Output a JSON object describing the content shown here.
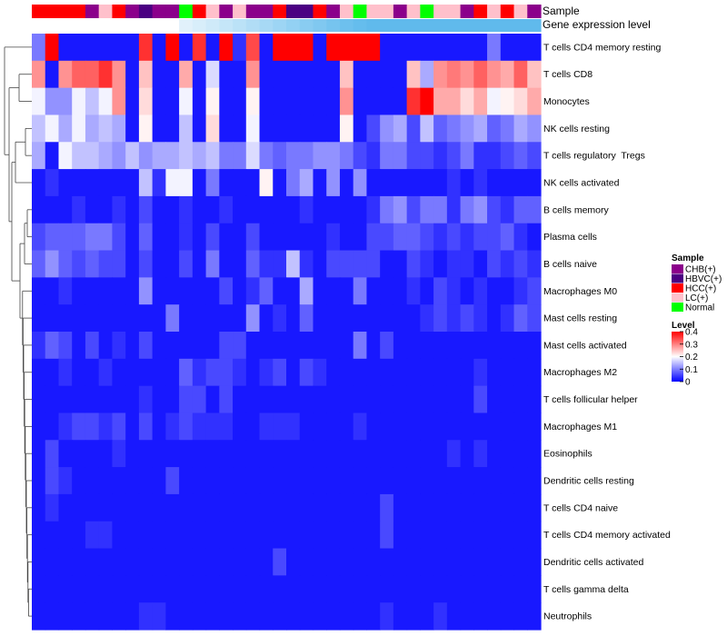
{
  "chart_data": {
    "type": "heatmap",
    "title": "",
    "annotation_labels": {
      "sample": "Sample",
      "gene_expression": "Gene expression level"
    },
    "sample_groups": [
      "CHB(+)",
      "HBVC(+)",
      "HCC(+)",
      "LC(+)",
      "Normal"
    ],
    "sample_colors": {
      "CHB(+)": "#8B008B",
      "HBVC(+)": "#4B0082",
      "HCC(+)": "#FF0000",
      "LC(+)": "#FFC0CB",
      "Normal": "#00FF00"
    },
    "sample_sequence": [
      "HCC(+)",
      "HCC(+)",
      "HCC(+)",
      "HCC(+)",
      "CHB(+)",
      "LC(+)",
      "HCC(+)",
      "CHB(+)",
      "HBVC(+)",
      "CHB(+)",
      "CHB(+)",
      "Normal",
      "HCC(+)",
      "LC(+)",
      "CHB(+)",
      "LC(+)",
      "CHB(+)",
      "CHB(+)",
      "HCC(+)",
      "HBVC(+)",
      "HBVC(+)",
      "HCC(+)",
      "CHB(+)",
      "LC(+)",
      "Normal",
      "LC(+)",
      "LC(+)",
      "CHB(+)",
      "LC(+)",
      "Normal",
      "LC(+)",
      "LC(+)",
      "CHB(+)",
      "HCC(+)",
      "LC(+)",
      "HCC(+)",
      "LC(+)",
      "CHB(+)"
    ],
    "gene_expression_sequence": [
      "#FFFFFF",
      "#FFFFFF",
      "#FFFFFF",
      "#FFFFFF",
      "#FFFFFF",
      "#FFFFFF",
      "#FFFFFF",
      "#FFFFFF",
      "#FFFFFF",
      "#FFFFFF",
      "#FFFFFF",
      "#E1F1FB",
      "#D8EEFA",
      "#CFEAF9",
      "#C5E6F8",
      "#BBE2F7",
      "#B1DDF6",
      "#A7D9F5",
      "#9DD5F4",
      "#93D1F3",
      "#89CCF1",
      "#80C8F0",
      "#76C4EF",
      "#6DC0EE",
      "#65BDED",
      "#60BAEC",
      "#60BAEC",
      "#60BAEC",
      "#60BAEC",
      "#60BAEC",
      "#60BAEC",
      "#60BAEC",
      "#60BAEC",
      "#60BAEC",
      "#60BAEC",
      "#60BAEC",
      "#60BAEC",
      "#60BAEC"
    ],
    "rows": [
      "T cells CD4 memory resting",
      "T cells CD8",
      "Monocytes",
      "NK cells resting",
      "T cells regulatory  Tregs",
      "NK cells activated",
      "B cells memory",
      "Plasma cells",
      "B cells naive",
      "Macrophages M0",
      "Mast cells resting",
      "Mast cells activated",
      "Macrophages M2",
      "T cells follicular helper",
      "Macrophages M1",
      "Eosinophils",
      "Dendritic cells resting",
      "T cells CD4 naive",
      "T cells CD4 memory activated",
      "Dendritic cells activated",
      "T cells gamma delta",
      "Neutrophils"
    ],
    "values": [
      [
        0.1,
        0.42,
        0.02,
        0.02,
        0.02,
        0.02,
        0.02,
        0.02,
        0.38,
        0.02,
        0.42,
        0.02,
        0.38,
        0.02,
        0.42,
        0.04,
        0.36,
        0.02,
        0.42,
        0.42,
        0.42,
        0.02,
        0.42,
        0.42,
        0.42,
        0.42,
        0.02,
        0.02,
        0.02,
        0.02,
        0.02,
        0.02,
        0.02,
        0.02,
        0.1,
        0.02,
        0.02,
        0.02
      ],
      [
        0.3,
        0.02,
        0.3,
        0.34,
        0.34,
        0.38,
        0.3,
        0.02,
        0.26,
        0.02,
        0.02,
        0.28,
        0.02,
        0.18,
        0.02,
        0.02,
        0.3,
        0.02,
        0.02,
        0.02,
        0.02,
        0.02,
        0.02,
        0.26,
        0.02,
        0.02,
        0.02,
        0.02,
        0.26,
        0.14,
        0.3,
        0.32,
        0.3,
        0.34,
        0.3,
        0.28,
        0.34,
        0.26
      ],
      [
        0.2,
        0.12,
        0.12,
        0.2,
        0.16,
        0.2,
        0.3,
        0.02,
        0.24,
        0.02,
        0.02,
        0.2,
        0.02,
        0.22,
        0.02,
        0.02,
        0.22,
        0.02,
        0.02,
        0.02,
        0.02,
        0.02,
        0.02,
        0.3,
        0.02,
        0.02,
        0.02,
        0.02,
        0.38,
        0.42,
        0.28,
        0.28,
        0.24,
        0.28,
        0.2,
        0.22,
        0.24,
        0.28
      ],
      [
        0.16,
        0.2,
        0.14,
        0.2,
        0.14,
        0.16,
        0.14,
        0.02,
        0.22,
        0.02,
        0.02,
        0.16,
        0.02,
        0.24,
        0.02,
        0.02,
        0.2,
        0.02,
        0.02,
        0.02,
        0.02,
        0.02,
        0.02,
        0.22,
        0.02,
        0.06,
        0.12,
        0.14,
        0.06,
        0.16,
        0.08,
        0.1,
        0.12,
        0.14,
        0.08,
        0.1,
        0.14,
        0.12
      ],
      [
        0.14,
        0.02,
        0.2,
        0.16,
        0.16,
        0.14,
        0.12,
        0.16,
        0.12,
        0.14,
        0.14,
        0.16,
        0.14,
        0.16,
        0.1,
        0.1,
        0.18,
        0.1,
        0.08,
        0.1,
        0.1,
        0.12,
        0.12,
        0.1,
        0.06,
        0.04,
        0.1,
        0.1,
        0.06,
        0.06,
        0.04,
        0.06,
        0.1,
        0.04,
        0.04,
        0.06,
        0.08,
        0.06
      ],
      [
        0.02,
        0.04,
        0.02,
        0.02,
        0.02,
        0.02,
        0.02,
        0.02,
        0.16,
        0.04,
        0.2,
        0.2,
        0.02,
        0.1,
        0.02,
        0.02,
        0.02,
        0.22,
        0.02,
        0.1,
        0.14,
        0.02,
        0.12,
        0.02,
        0.12,
        0.02,
        0.02,
        0.02,
        0.02,
        0.02,
        0.02,
        0.04,
        0.02,
        0.04,
        0.02,
        0.02,
        0.02,
        0.02
      ],
      [
        0.02,
        0.02,
        0.02,
        0.04,
        0.02,
        0.02,
        0.04,
        0.02,
        0.06,
        0.02,
        0.02,
        0.04,
        0.02,
        0.02,
        0.04,
        0.02,
        0.02,
        0.02,
        0.02,
        0.02,
        0.04,
        0.02,
        0.02,
        0.02,
        0.02,
        0.04,
        0.1,
        0.12,
        0.06,
        0.1,
        0.1,
        0.04,
        0.1,
        0.12,
        0.06,
        0.04,
        0.08,
        0.08
      ],
      [
        0.06,
        0.08,
        0.08,
        0.08,
        0.1,
        0.1,
        0.06,
        0.02,
        0.08,
        0.02,
        0.02,
        0.04,
        0.02,
        0.06,
        0.02,
        0.02,
        0.06,
        0.02,
        0.02,
        0.02,
        0.02,
        0.02,
        0.04,
        0.02,
        0.02,
        0.06,
        0.06,
        0.08,
        0.08,
        0.06,
        0.04,
        0.06,
        0.04,
        0.06,
        0.06,
        0.08,
        0.04,
        0.02
      ],
      [
        0.08,
        0.12,
        0.08,
        0.06,
        0.08,
        0.06,
        0.06,
        0.02,
        0.06,
        0.02,
        0.02,
        0.06,
        0.02,
        0.1,
        0.02,
        0.02,
        0.08,
        0.04,
        0.04,
        0.16,
        0.04,
        0.02,
        0.06,
        0.06,
        0.06,
        0.06,
        0.02,
        0.02,
        0.06,
        0.04,
        0.02,
        0.04,
        0.04,
        0.02,
        0.06,
        0.04,
        0.06,
        0.04
      ],
      [
        0.02,
        0.02,
        0.04,
        0.02,
        0.02,
        0.02,
        0.02,
        0.02,
        0.12,
        0.02,
        0.02,
        0.02,
        0.02,
        0.02,
        0.06,
        0.02,
        0.04,
        0.08,
        0.02,
        0.02,
        0.14,
        0.02,
        0.02,
        0.02,
        0.1,
        0.02,
        0.02,
        0.02,
        0.04,
        0.02,
        0.06,
        0.04,
        0.02,
        0.04,
        0.02,
        0.02,
        0.04,
        0.06
      ],
      [
        0.02,
        0.02,
        0.02,
        0.02,
        0.02,
        0.02,
        0.02,
        0.02,
        0.02,
        0.02,
        0.1,
        0.02,
        0.02,
        0.02,
        0.02,
        0.02,
        0.12,
        0.02,
        0.04,
        0.02,
        0.08,
        0.02,
        0.02,
        0.02,
        0.02,
        0.02,
        0.02,
        0.02,
        0.02,
        0.04,
        0.06,
        0.04,
        0.06,
        0.04,
        0.02,
        0.04,
        0.08,
        0.06
      ],
      [
        0.04,
        0.08,
        0.06,
        0.02,
        0.06,
        0.02,
        0.04,
        0.02,
        0.06,
        0.02,
        0.02,
        0.02,
        0.02,
        0.02,
        0.06,
        0.06,
        0.02,
        0.02,
        0.02,
        0.02,
        0.02,
        0.02,
        0.02,
        0.02,
        0.1,
        0.02,
        0.06,
        0.02,
        0.02,
        0.02,
        0.02,
        0.02,
        0.02,
        0.02,
        0.02,
        0.02,
        0.02,
        0.02
      ],
      [
        0.02,
        0.02,
        0.04,
        0.02,
        0.02,
        0.04,
        0.02,
        0.02,
        0.02,
        0.02,
        0.02,
        0.08,
        0.04,
        0.06,
        0.06,
        0.04,
        0.02,
        0.04,
        0.06,
        0.02,
        0.06,
        0.04,
        0.02,
        0.02,
        0.02,
        0.02,
        0.02,
        0.02,
        0.02,
        0.02,
        0.02,
        0.02,
        0.02,
        0.04,
        0.02,
        0.02,
        0.02,
        0.02
      ],
      [
        0.02,
        0.02,
        0.02,
        0.02,
        0.02,
        0.02,
        0.02,
        0.02,
        0.04,
        0.02,
        0.02,
        0.06,
        0.06,
        0.02,
        0.06,
        0.02,
        0.02,
        0.02,
        0.02,
        0.02,
        0.02,
        0.02,
        0.02,
        0.02,
        0.02,
        0.02,
        0.02,
        0.02,
        0.02,
        0.02,
        0.02,
        0.02,
        0.02,
        0.06,
        0.02,
        0.02,
        0.02,
        0.02
      ],
      [
        0.02,
        0.02,
        0.04,
        0.06,
        0.06,
        0.04,
        0.06,
        0.02,
        0.06,
        0.02,
        0.04,
        0.06,
        0.04,
        0.04,
        0.04,
        0.02,
        0.02,
        0.04,
        0.04,
        0.04,
        0.02,
        0.02,
        0.02,
        0.02,
        0.04,
        0.02,
        0.02,
        0.02,
        0.02,
        0.02,
        0.02,
        0.02,
        0.02,
        0.02,
        0.02,
        0.02,
        0.02,
        0.02
      ],
      [
        0.02,
        0.06,
        0.02,
        0.02,
        0.02,
        0.02,
        0.04,
        0.02,
        0.02,
        0.02,
        0.02,
        0.02,
        0.02,
        0.02,
        0.02,
        0.02,
        0.02,
        0.02,
        0.02,
        0.02,
        0.02,
        0.02,
        0.02,
        0.02,
        0.02,
        0.02,
        0.02,
        0.02,
        0.02,
        0.02,
        0.02,
        0.04,
        0.02,
        0.04,
        0.02,
        0.02,
        0.02,
        0.02
      ],
      [
        0.02,
        0.06,
        0.04,
        0.02,
        0.02,
        0.02,
        0.02,
        0.02,
        0.02,
        0.02,
        0.06,
        0.02,
        0.02,
        0.02,
        0.02,
        0.02,
        0.02,
        0.02,
        0.02,
        0.02,
        0.02,
        0.02,
        0.02,
        0.02,
        0.02,
        0.02,
        0.02,
        0.02,
        0.02,
        0.02,
        0.02,
        0.02,
        0.02,
        0.02,
        0.02,
        0.02,
        0.02,
        0.02
      ],
      [
        0.02,
        0.04,
        0.02,
        0.02,
        0.02,
        0.02,
        0.02,
        0.02,
        0.02,
        0.02,
        0.02,
        0.02,
        0.02,
        0.02,
        0.02,
        0.02,
        0.02,
        0.02,
        0.02,
        0.02,
        0.02,
        0.02,
        0.02,
        0.02,
        0.02,
        0.02,
        0.06,
        0.02,
        0.02,
        0.02,
        0.02,
        0.02,
        0.02,
        0.02,
        0.02,
        0.02,
        0.02,
        0.02
      ],
      [
        0.02,
        0.02,
        0.02,
        0.02,
        0.04,
        0.04,
        0.02,
        0.02,
        0.02,
        0.02,
        0.02,
        0.02,
        0.02,
        0.02,
        0.02,
        0.02,
        0.02,
        0.02,
        0.02,
        0.02,
        0.02,
        0.02,
        0.02,
        0.02,
        0.02,
        0.02,
        0.06,
        0.02,
        0.02,
        0.02,
        0.02,
        0.02,
        0.02,
        0.02,
        0.02,
        0.02,
        0.02,
        0.02
      ],
      [
        0.02,
        0.02,
        0.02,
        0.02,
        0.02,
        0.02,
        0.02,
        0.02,
        0.02,
        0.02,
        0.02,
        0.02,
        0.02,
        0.02,
        0.02,
        0.02,
        0.02,
        0.02,
        0.06,
        0.02,
        0.02,
        0.02,
        0.02,
        0.02,
        0.02,
        0.02,
        0.02,
        0.02,
        0.02,
        0.02,
        0.02,
        0.02,
        0.02,
        0.02,
        0.02,
        0.02,
        0.02,
        0.02
      ],
      [
        0.02,
        0.02,
        0.02,
        0.02,
        0.02,
        0.02,
        0.02,
        0.02,
        0.02,
        0.02,
        0.02,
        0.02,
        0.02,
        0.02,
        0.02,
        0.02,
        0.02,
        0.02,
        0.02,
        0.02,
        0.02,
        0.02,
        0.02,
        0.02,
        0.02,
        0.02,
        0.02,
        0.02,
        0.02,
        0.02,
        0.02,
        0.02,
        0.02,
        0.02,
        0.02,
        0.02,
        0.02,
        0.02
      ],
      [
        0.02,
        0.02,
        0.02,
        0.02,
        0.02,
        0.02,
        0.02,
        0.02,
        0.04,
        0.04,
        0.02,
        0.02,
        0.02,
        0.02,
        0.02,
        0.02,
        0.02,
        0.02,
        0.02,
        0.02,
        0.02,
        0.02,
        0.02,
        0.02,
        0.02,
        0.02,
        0.04,
        0.02,
        0.02,
        0.02,
        0.04,
        0.02,
        0.02,
        0.02,
        0.02,
        0.02,
        0.02,
        0.02
      ]
    ],
    "legend": {
      "sample_title": "Sample",
      "level_title": "Level",
      "level_ticks": [
        0,
        0.1,
        0.2,
        0.3,
        0.4
      ],
      "level_tick_labels": [
        "0",
        "0.1",
        "0.2",
        "0.3",
        "0.4"
      ],
      "color_low": "#0000FF",
      "color_mid": "#FFFFFF",
      "color_high": "#FF0000",
      "range": [
        0,
        0.42
      ]
    }
  }
}
